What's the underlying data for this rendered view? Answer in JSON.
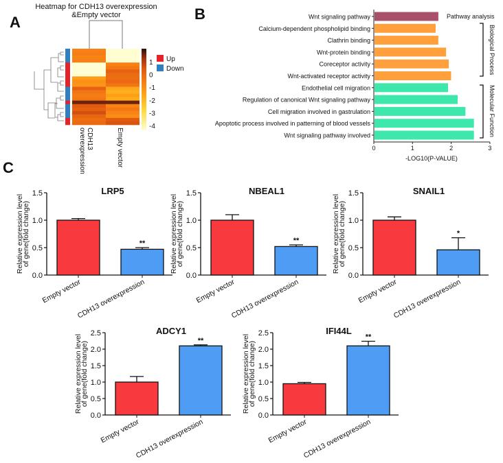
{
  "panel_letters": {
    "a": "A",
    "b": "B",
    "c": "C"
  },
  "chart_data": [
    {
      "type": "heatmap",
      "title_line1": "Heatmap for CDH13 overexpression",
      "title_line2": "&Empty vector",
      "columns": [
        "CDH13 overexpression",
        "Empty vector"
      ],
      "column_label_lines": [
        [
          "CDH13",
          "overexpression"
        ],
        [
          "Empty vector"
        ]
      ],
      "row_groups": [
        "Down",
        "Down",
        "Down",
        "Down",
        "Up",
        "Up",
        "Up",
        "Up",
        "Up",
        "Up",
        "Up",
        "Down",
        "Down",
        "Down",
        "Down",
        "Up",
        "Down",
        "Down",
        "Down",
        "Down",
        "Up",
        "Up"
      ],
      "values": [
        [
          -0.5,
          -4
        ],
        [
          -0.4,
          -4
        ],
        [
          -0.6,
          -4
        ],
        [
          -0.5,
          -4
        ],
        [
          -4,
          -0.5
        ],
        [
          -4,
          -0.3
        ],
        [
          -4,
          0.3
        ],
        [
          -4,
          0
        ],
        [
          -1.2,
          0
        ],
        [
          -0.9,
          0.1
        ],
        [
          -1,
          -0.2
        ],
        [
          0.3,
          -1.4
        ],
        [
          -0.2,
          -1.6
        ],
        [
          -0.4,
          -1.2
        ],
        [
          -0.3,
          -1.5
        ],
        [
          1.6,
          1.6
        ],
        [
          0.5,
          -0.6
        ],
        [
          0.3,
          -0.3
        ],
        [
          0.7,
          -0.6
        ],
        [
          0.2,
          -0.8
        ],
        [
          0,
          0.5
        ],
        [
          0.1,
          0.6
        ]
      ],
      "colorbar_ticks": [
        "1",
        "0",
        "-1",
        "-2",
        "-3",
        "-4"
      ],
      "legend": [
        {
          "label": "Up",
          "color": "#e3242b"
        },
        {
          "label": "Down",
          "color": "#2f7fc1"
        }
      ]
    },
    {
      "type": "bar",
      "orientation": "horizontal",
      "categories": [
        "Wnt signaling pathway",
        "Calcium-dependent phospholipid binding",
        "Clathrin binding",
        "Wnt-protein binding",
        "Coreceptor activity",
        "Wnt-activated receptor activity",
        "Endothelial cell migration",
        "Regulation of canonical Wnt signaling pathway",
        "Cell migration involved in gastrulation",
        "Apoptotic process involved in patterning of blood vessels",
        "Wnt signaling pathway involved"
      ],
      "values": [
        1.65,
        1.58,
        1.65,
        1.85,
        1.92,
        1.98,
        1.9,
        2.15,
        2.35,
        2.57,
        2.57
      ],
      "groups": [
        "Pathway analysis",
        "Biological Process",
        "Biological Process",
        "Biological Process",
        "Biological Process",
        "Biological Process",
        "Molecular Function",
        "Molecular Function",
        "Molecular Function",
        "Molecular Function",
        "Molecular Function"
      ],
      "group_labels": [
        "Pathway analysis",
        "Biological Process",
        "Molecular Function"
      ],
      "group_colors": {
        "Pathway analysis": "#a9506a",
        "Biological Process": "#ffa03c",
        "Molecular Function": "#3ee8ac"
      },
      "xlabel": "-LOG10(P-VALUE)",
      "xlim": [
        0,
        3
      ],
      "xticks": [
        "0",
        "1",
        "2",
        "3"
      ]
    },
    {
      "type": "bar",
      "title": "LRP5",
      "categories": [
        "Empty vector",
        "CDH13 overexpression"
      ],
      "values": [
        1.0,
        0.47
      ],
      "errors": [
        0.03,
        0.03
      ],
      "significance": [
        "",
        "**"
      ],
      "ylabel_line1": "Relative expression level",
      "ylabel_line2": "of gene(fold change)",
      "ylim": [
        0,
        1.5
      ],
      "yticks": [
        "0.0",
        "0.5",
        "1.0",
        "1.5"
      ],
      "colors": [
        "#f8393d",
        "#4f9cf5"
      ]
    },
    {
      "type": "bar",
      "title": "NBEAL1",
      "categories": [
        "Empty vector",
        "CDH13 overexpression"
      ],
      "values": [
        1.0,
        0.52
      ],
      "errors": [
        0.1,
        0.03
      ],
      "significance": [
        "",
        "**"
      ],
      "ylabel_line1": "Relative expression level",
      "ylabel_line2": "of gene(fold change)",
      "ylim": [
        0,
        1.5
      ],
      "yticks": [
        "0.0",
        "0.5",
        "1.0",
        "1.5"
      ],
      "colors": [
        "#f8393d",
        "#4f9cf5"
      ]
    },
    {
      "type": "bar",
      "title": "SNAIL1",
      "categories": [
        "Empty vector",
        "CDH13 overexpression"
      ],
      "values": [
        1.0,
        0.46
      ],
      "errors": [
        0.06,
        0.22
      ],
      "significance": [
        "",
        "*"
      ],
      "ylabel_line1": "Relative expression level",
      "ylabel_line2": "of gene(fold change)",
      "ylim": [
        0,
        1.5
      ],
      "yticks": [
        "0.0",
        "0.5",
        "1.0",
        "1.5"
      ],
      "colors": [
        "#f8393d",
        "#4f9cf5"
      ]
    },
    {
      "type": "bar",
      "title": "ADCY1",
      "categories": [
        "Empty vector",
        "CDH13 overexpression"
      ],
      "values": [
        1.0,
        2.1
      ],
      "errors": [
        0.17,
        0.03
      ],
      "significance": [
        "",
        "**"
      ],
      "ylabel_line1": "Relative expression level",
      "ylabel_line2": "of gene(fold change)",
      "ylim": [
        0,
        2.5
      ],
      "yticks": [
        "0.0",
        "0.5",
        "1.0",
        "1.5",
        "2.0",
        "2.5"
      ],
      "colors": [
        "#f8393d",
        "#4f9cf5"
      ]
    },
    {
      "type": "bar",
      "title": "IFI44L",
      "categories": [
        "Empty vector",
        "CDH13 overexpression"
      ],
      "values": [
        0.95,
        2.1
      ],
      "errors": [
        0.04,
        0.14
      ],
      "significance": [
        "",
        "**"
      ],
      "ylabel_line1": "Relative expression level",
      "ylabel_line2": "of gene(fold change)",
      "ylim": [
        0,
        2.5
      ],
      "yticks": [
        "0.0",
        "0.5",
        "1.0",
        "1.5",
        "2.0",
        "2.5"
      ],
      "colors": [
        "#f8393d",
        "#4f9cf5"
      ]
    }
  ]
}
